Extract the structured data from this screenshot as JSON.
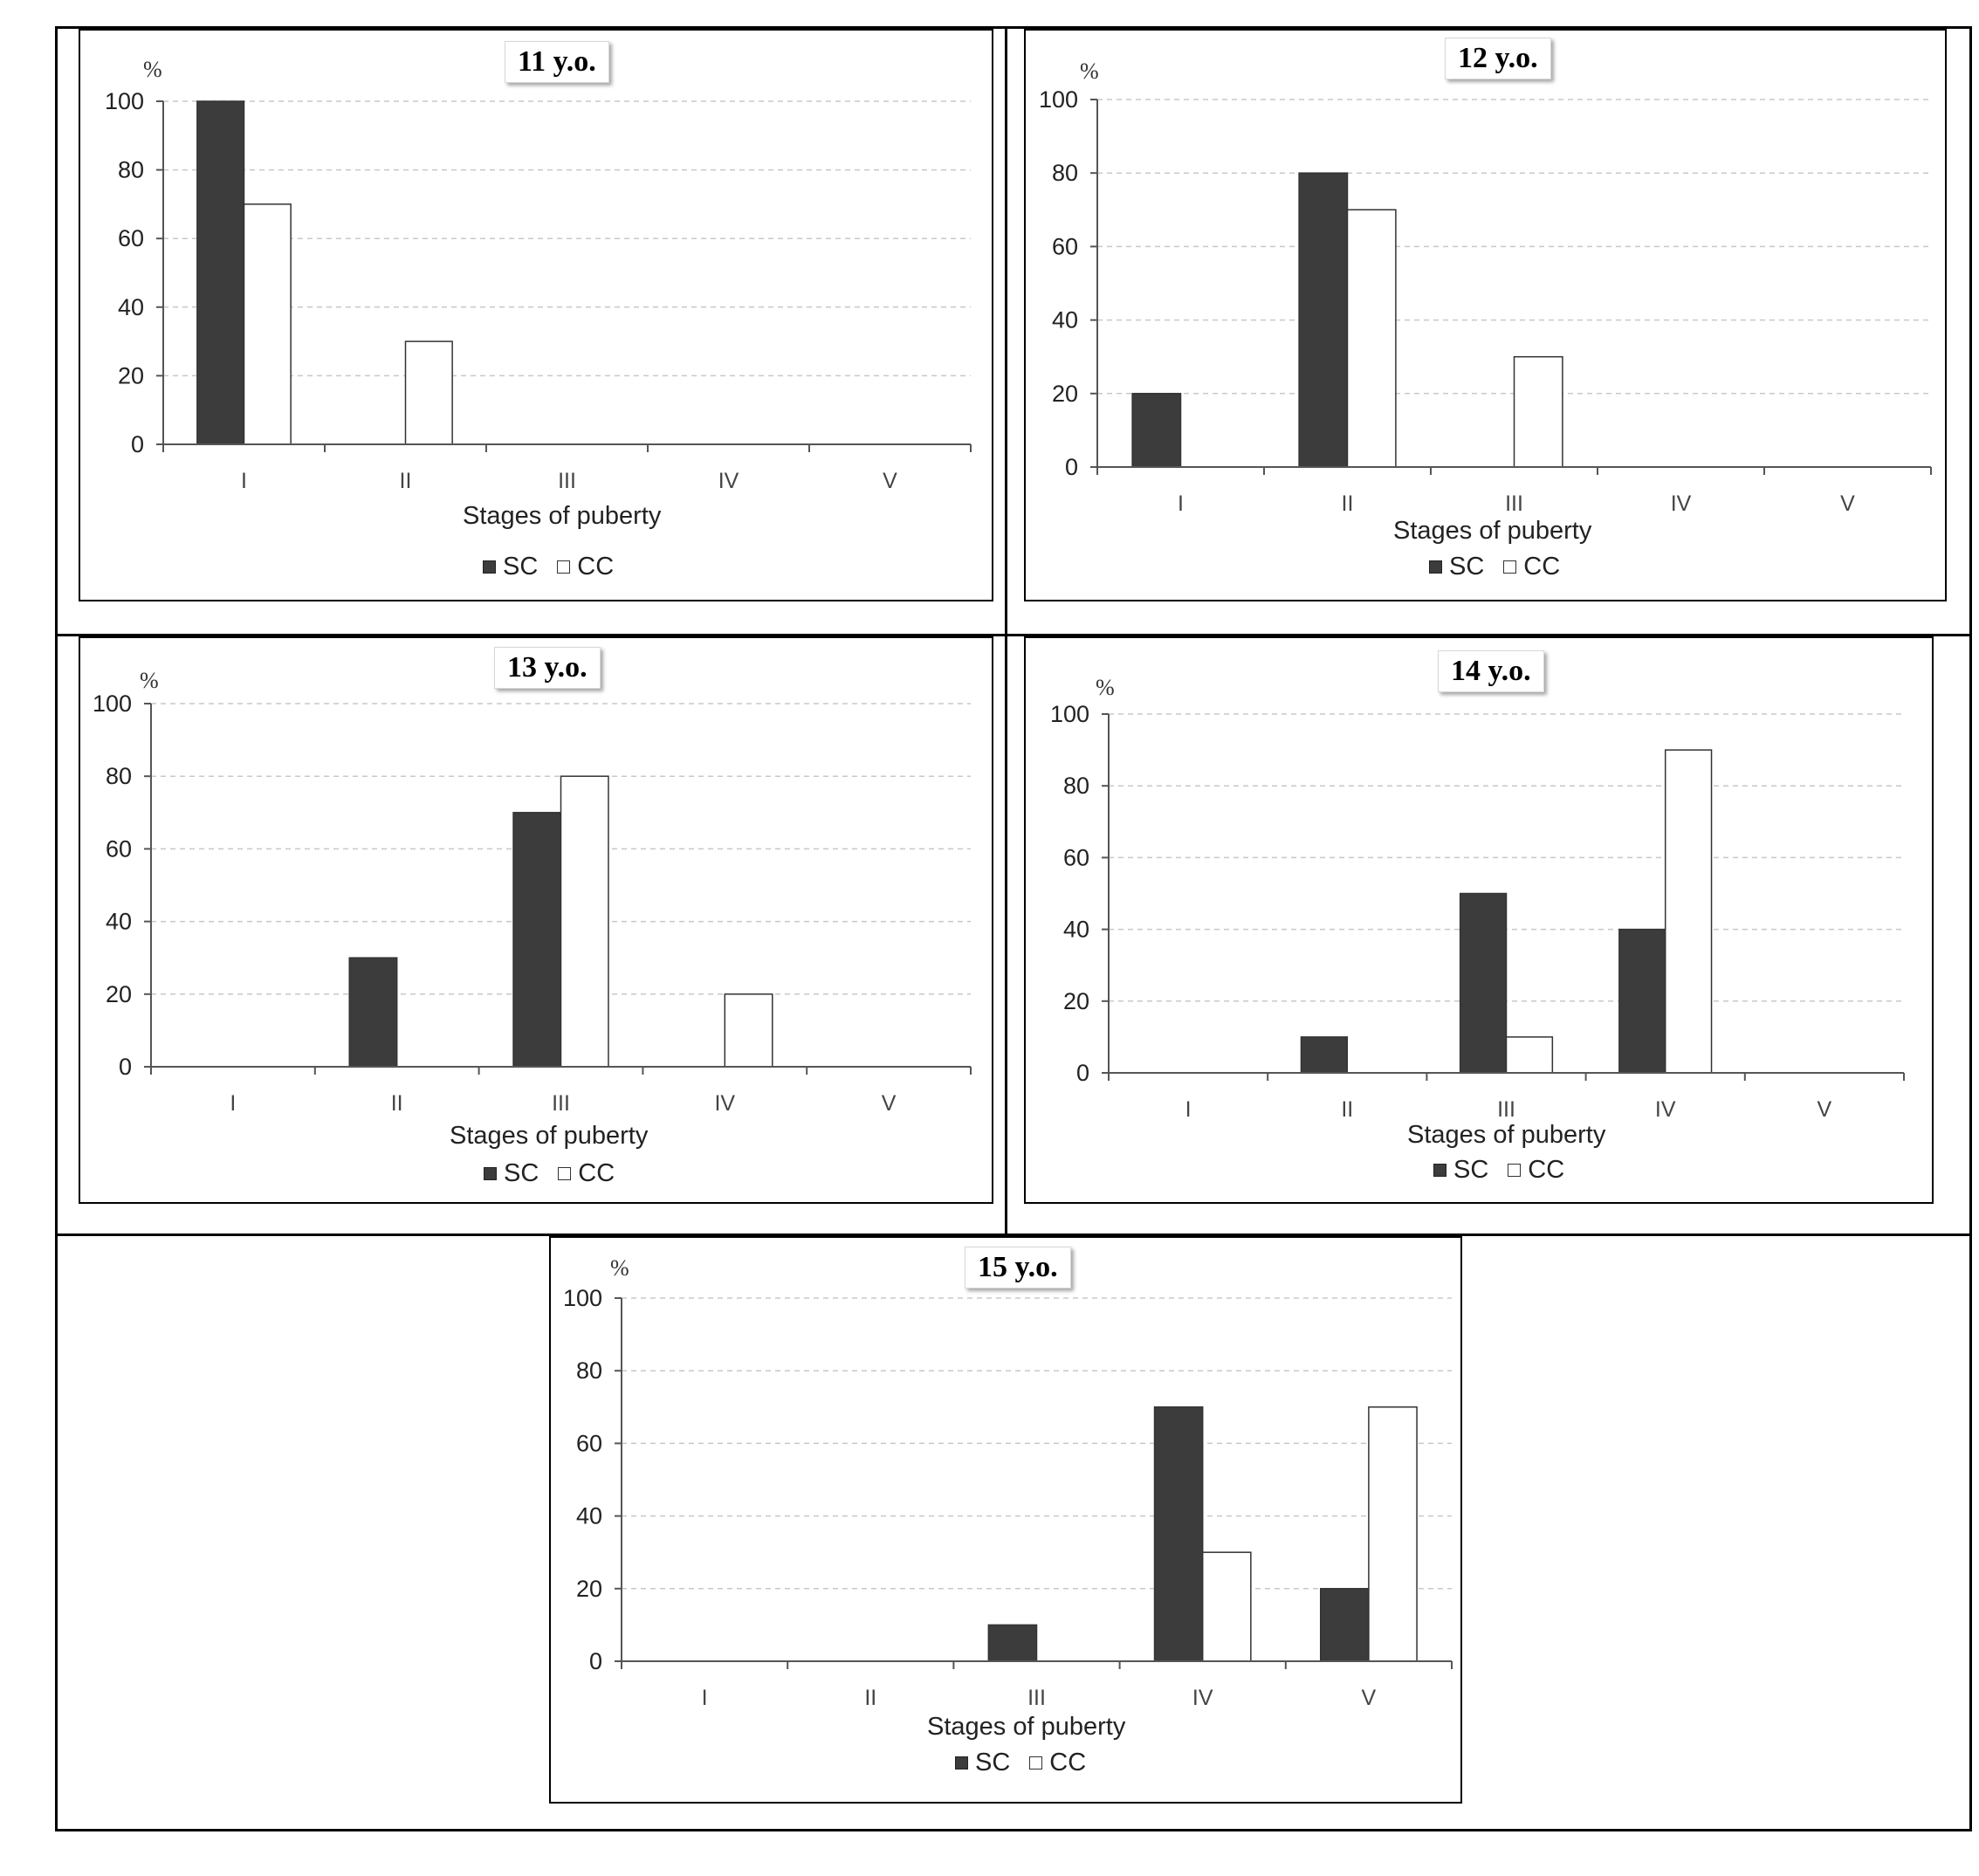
{
  "chart_data": [
    {
      "type": "bar",
      "title": "11 y.o.",
      "ylabel": "%",
      "xlabel": "Stages of puberty",
      "categories": [
        "I",
        "II",
        "III",
        "IV",
        "V"
      ],
      "ylim": [
        0,
        100
      ],
      "yticks": [
        0,
        20,
        40,
        60,
        80,
        100
      ],
      "grid": true,
      "legend_position": "bottom",
      "series": [
        {
          "name": "SC",
          "values": [
            100,
            0,
            0,
            0,
            0
          ]
        },
        {
          "name": "CC",
          "values": [
            70,
            30,
            0,
            0,
            0
          ]
        }
      ]
    },
    {
      "type": "bar",
      "title": "12 y.o.",
      "ylabel": "%",
      "xlabel": "Stages of puberty",
      "categories": [
        "I",
        "II",
        "III",
        "IV",
        "V"
      ],
      "ylim": [
        0,
        100
      ],
      "yticks": [
        0,
        20,
        40,
        60,
        80,
        100
      ],
      "grid": true,
      "legend_position": "bottom",
      "series": [
        {
          "name": "SC",
          "values": [
            20,
            80,
            0,
            0,
            0
          ]
        },
        {
          "name": "CC",
          "values": [
            0,
            70,
            30,
            0,
            0
          ]
        }
      ]
    },
    {
      "type": "bar",
      "title": "13 y.o.",
      "ylabel": "%",
      "xlabel": "Stages of puberty",
      "categories": [
        "I",
        "II",
        "III",
        "IV",
        "V"
      ],
      "ylim": [
        0,
        100
      ],
      "yticks": [
        0,
        20,
        40,
        60,
        80,
        100
      ],
      "grid": true,
      "legend_position": "bottom",
      "series": [
        {
          "name": "SC",
          "values": [
            0,
            30,
            70,
            0,
            0
          ]
        },
        {
          "name": "CC",
          "values": [
            0,
            0,
            80,
            20,
            0
          ]
        }
      ]
    },
    {
      "type": "bar",
      "title": "14 y.o.",
      "ylabel": "%",
      "xlabel": "Stages of puberty",
      "categories": [
        "I",
        "II",
        "III",
        "IV",
        "V"
      ],
      "ylim": [
        0,
        100
      ],
      "yticks": [
        0,
        20,
        40,
        60,
        80,
        100
      ],
      "grid": true,
      "legend_position": "bottom",
      "series": [
        {
          "name": "SC",
          "values": [
            0,
            10,
            50,
            40,
            0
          ]
        },
        {
          "name": "CC",
          "values": [
            0,
            0,
            10,
            90,
            0
          ]
        }
      ]
    },
    {
      "type": "bar",
      "title": "15 y.o.",
      "ylabel": "%",
      "xlabel": "Stages of puberty",
      "categories": [
        "I",
        "II",
        "III",
        "IV",
        "V"
      ],
      "ylim": [
        0,
        100
      ],
      "yticks": [
        0,
        20,
        40,
        60,
        80,
        100
      ],
      "grid": true,
      "legend_position": "bottom",
      "series": [
        {
          "name": "SC",
          "values": [
            0,
            0,
            10,
            70,
            20
          ]
        },
        {
          "name": "CC",
          "values": [
            0,
            0,
            0,
            30,
            70
          ]
        }
      ]
    }
  ],
  "colors": {
    "sc": "#3c3c3c",
    "cc": "#ffffff",
    "grid": "#c8c8c8",
    "axis": "#555555"
  }
}
